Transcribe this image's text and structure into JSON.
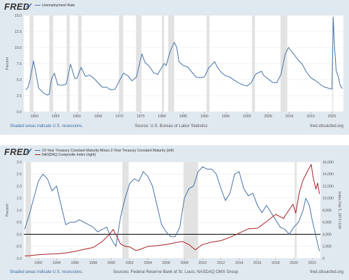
{
  "chart_data": [
    {
      "type": "line",
      "title": "",
      "series": [
        {
          "name": "Unemployment Rate",
          "color": "#4572a7",
          "points": [
            [
              1948,
              3.4
            ],
            [
              1948.5,
              3.8
            ],
            [
              1949,
              5.0
            ],
            [
              1949.8,
              7.9
            ],
            [
              1950.5,
              5.5
            ],
            [
              1951,
              3.7
            ],
            [
              1952,
              3.0
            ],
            [
              1953,
              2.6
            ],
            [
              1953.5,
              2.7
            ],
            [
              1954,
              5.0
            ],
            [
              1954.7,
              6.0
            ],
            [
              1955.5,
              4.2
            ],
            [
              1956.5,
              4.1
            ],
            [
              1957.5,
              4.3
            ],
            [
              1958.5,
              7.4
            ],
            [
              1959.5,
              5.2
            ],
            [
              1960,
              5.2
            ],
            [
              1961,
              6.9
            ],
            [
              1962,
              5.5
            ],
            [
              1963,
              5.7
            ],
            [
              1964,
              5.2
            ],
            [
              1965,
              4.5
            ],
            [
              1966,
              3.8
            ],
            [
              1967,
              3.8
            ],
            [
              1968,
              3.4
            ],
            [
              1969,
              3.5
            ],
            [
              1970,
              4.8
            ],
            [
              1971,
              6.0
            ],
            [
              1972,
              5.6
            ],
            [
              1973,
              4.8
            ],
            [
              1974,
              5.4
            ],
            [
              1975.3,
              9.0
            ],
            [
              1976,
              7.7
            ],
            [
              1977,
              7.1
            ],
            [
              1978,
              6.1
            ],
            [
              1979,
              5.8
            ],
            [
              1980.5,
              7.5
            ],
            [
              1981,
              7.2
            ],
            [
              1982,
              9.5
            ],
            [
              1982.9,
              10.8
            ],
            [
              1983.5,
              10.0
            ],
            [
              1984,
              7.8
            ],
            [
              1985,
              7.2
            ],
            [
              1986,
              7.0
            ],
            [
              1987,
              6.2
            ],
            [
              1988,
              5.4
            ],
            [
              1989,
              5.3
            ],
            [
              1990,
              5.4
            ],
            [
              1991,
              6.8
            ],
            [
              1992.4,
              7.8
            ],
            [
              1993,
              7.0
            ],
            [
              1994,
              6.1
            ],
            [
              1995,
              5.6
            ],
            [
              1996,
              5.4
            ],
            [
              1997,
              4.9
            ],
            [
              1998,
              4.5
            ],
            [
              1999,
              4.2
            ],
            [
              2000,
              4.0
            ],
            [
              2001,
              4.5
            ],
            [
              2002,
              5.8
            ],
            [
              2003.4,
              6.3
            ],
            [
              2004,
              5.6
            ],
            [
              2005,
              5.1
            ],
            [
              2006,
              4.6
            ],
            [
              2007,
              4.5
            ],
            [
              2008,
              5.8
            ],
            [
              2009,
              9.0
            ],
            [
              2009.8,
              10.0
            ],
            [
              2010.5,
              9.4
            ],
            [
              2011,
              9.0
            ],
            [
              2012,
              8.1
            ],
            [
              2013,
              7.4
            ],
            [
              2014,
              6.2
            ],
            [
              2015,
              5.3
            ],
            [
              2016,
              4.9
            ],
            [
              2017,
              4.4
            ],
            [
              2018,
              3.9
            ],
            [
              2019,
              3.7
            ],
            [
              2020,
              3.5
            ],
            [
              2020.3,
              14.7
            ],
            [
              2020.6,
              10.2
            ],
            [
              2021,
              6.4
            ],
            [
              2021.5,
              5.4
            ],
            [
              2022,
              4.0
            ],
            [
              2022.5,
              3.6
            ]
          ]
        }
      ],
      "xlim": [
        1947.5,
        2022.7
      ],
      "ylim": [
        0,
        15
      ],
      "ylabel": "Percent",
      "xticks": [
        "1950",
        "1955",
        "1960",
        "1965",
        "1970",
        "1975",
        "1980",
        "1985",
        "1990",
        "1995",
        "2000",
        "2005",
        "2010",
        "2015",
        "2020"
      ],
      "xtick_values": [
        1950,
        1955,
        1960,
        1965,
        1970,
        1975,
        1980,
        1985,
        1990,
        1995,
        2000,
        2005,
        2010,
        2015,
        2020
      ],
      "yticks": [
        "0.0",
        "2.5",
        "5.0",
        "7.5",
        "10.0",
        "12.5",
        "15.0"
      ],
      "ytick_values": [
        0,
        2.5,
        5,
        7.5,
        10,
        12.5,
        15
      ],
      "recessions": [
        [
          1948.9,
          1949.8
        ],
        [
          1953.5,
          1954.4
        ],
        [
          1957.6,
          1958.3
        ],
        [
          1960.3,
          1961.1
        ],
        [
          1969.9,
          1970.9
        ],
        [
          1973.9,
          1975.2
        ],
        [
          1980.0,
          1980.5
        ],
        [
          1981.5,
          1982.9
        ],
        [
          1990.5,
          1991.2
        ],
        [
          2001.2,
          2001.9
        ],
        [
          2007.9,
          2009.5
        ],
        [
          2020.1,
          2020.3
        ]
      ],
      "grid": true,
      "legend": "top-left"
    },
    {
      "type": "line",
      "title": "",
      "series": [
        {
          "name": "10-Year Treasury Constant Maturity Minus 2-Year Treasury Constant Maturity (left)",
          "color": "#4572a7",
          "axis": "left",
          "points": [
            [
              1990.5,
              0.2
            ],
            [
              1991,
              0.8
            ],
            [
              1991.5,
              1.5
            ],
            [
              1992,
              2.2
            ],
            [
              1992.5,
              2.5
            ],
            [
              1993,
              2.3
            ],
            [
              1993.5,
              1.8
            ],
            [
              1994,
              2.0
            ],
            [
              1994.5,
              1.2
            ],
            [
              1995,
              0.4
            ],
            [
              1995.5,
              0.5
            ],
            [
              1996,
              0.5
            ],
            [
              1996.5,
              0.6
            ],
            [
              1997,
              0.5
            ],
            [
              1997.5,
              0.4
            ],
            [
              1998,
              0.3
            ],
            [
              1998.5,
              0.1
            ],
            [
              1999,
              0.2
            ],
            [
              1999.5,
              0.3
            ],
            [
              2000,
              -0.2
            ],
            [
              2000.5,
              -0.5
            ],
            [
              2001,
              0.7
            ],
            [
              2001.5,
              1.5
            ],
            [
              2002,
              2.1
            ],
            [
              2002.5,
              2.3
            ],
            [
              2003,
              2.2
            ],
            [
              2003.5,
              2.6
            ],
            [
              2004,
              2.4
            ],
            [
              2004.5,
              2.0
            ],
            [
              2005,
              1.2
            ],
            [
              2005.5,
              0.4
            ],
            [
              2006,
              0.1
            ],
            [
              2006.5,
              -0.1
            ],
            [
              2007,
              -0.1
            ],
            [
              2007.5,
              0.3
            ],
            [
              2008,
              1.5
            ],
            [
              2008.5,
              1.9
            ],
            [
              2009,
              2.0
            ],
            [
              2009.5,
              2.6
            ],
            [
              2010,
              2.8
            ],
            [
              2010.5,
              2.7
            ],
            [
              2011,
              2.7
            ],
            [
              2011.5,
              2.5
            ],
            [
              2012,
              1.9
            ],
            [
              2012.5,
              1.4
            ],
            [
              2013,
              1.7
            ],
            [
              2013.5,
              2.5
            ],
            [
              2014,
              2.6
            ],
            [
              2014.5,
              1.9
            ],
            [
              2015,
              1.6
            ],
            [
              2015.5,
              1.7
            ],
            [
              2016,
              1.2
            ],
            [
              2016.5,
              0.9
            ],
            [
              2017,
              1.2
            ],
            [
              2017.5,
              0.9
            ],
            [
              2018,
              0.6
            ],
            [
              2018.5,
              0.3
            ],
            [
              2019,
              0.2
            ],
            [
              2019.5,
              0.0
            ],
            [
              2020,
              0.3
            ],
            [
              2020.5,
              0.5
            ],
            [
              2021,
              1.0
            ],
            [
              2021.3,
              1.5
            ],
            [
              2021.7,
              1.2
            ],
            [
              2022,
              0.6
            ],
            [
              2022.3,
              0.1
            ],
            [
              2022.6,
              -0.4
            ],
            [
              2022.8,
              -0.7
            ]
          ]
        },
        {
          "name": "NASDAQ Composite Index (right)",
          "color": "#aa1d24",
          "axis": "right",
          "points": [
            [
              1990.5,
              400
            ],
            [
              1991,
              430
            ],
            [
              1992,
              600
            ],
            [
              1993,
              700
            ],
            [
              1994,
              750
            ],
            [
              1995,
              900
            ],
            [
              1996,
              1150
            ],
            [
              1997,
              1500
            ],
            [
              1998,
              1800
            ],
            [
              1999,
              2800
            ],
            [
              1999.8,
              4000
            ],
            [
              2000.2,
              4800
            ],
            [
              2000.6,
              3600
            ],
            [
              2001,
              2400
            ],
            [
              2001.5,
              2000
            ],
            [
              2002,
              1900
            ],
            [
              2002.7,
              1300
            ],
            [
              2003,
              1400
            ],
            [
              2004,
              2000
            ],
            [
              2005,
              2100
            ],
            [
              2006,
              2300
            ],
            [
              2007,
              2600
            ],
            [
              2007.8,
              2800
            ],
            [
              2008.5,
              2300
            ],
            [
              2009.2,
              1400
            ],
            [
              2009.8,
              2100
            ],
            [
              2010,
              2300
            ],
            [
              2011,
              2700
            ],
            [
              2012,
              2950
            ],
            [
              2013,
              3500
            ],
            [
              2014,
              4200
            ],
            [
              2015,
              4900
            ],
            [
              2016,
              5000
            ],
            [
              2017,
              6100
            ],
            [
              2018,
              7300
            ],
            [
              2018.9,
              6600
            ],
            [
              2019,
              7000
            ],
            [
              2019.9,
              9000
            ],
            [
              2020.2,
              7500
            ],
            [
              2020.6,
              11000
            ],
            [
              2021,
              13000
            ],
            [
              2021.5,
              14500
            ],
            [
              2021.9,
              15600
            ],
            [
              2022.1,
              13500
            ],
            [
              2022.4,
              11500
            ],
            [
              2022.6,
              12500
            ],
            [
              2022.8,
              10700
            ]
          ]
        }
      ],
      "xlim": [
        1990.4,
        2022.9
      ],
      "ylim": [
        -1.0,
        3.0
      ],
      "y2lim": [
        0,
        16000
      ],
      "ylabel": "Percent",
      "y2label": "Index Feb 5, 1971=100",
      "xticks": [
        "1992",
        "1994",
        "1996",
        "1998",
        "2000",
        "2002",
        "2004",
        "2006",
        "2008",
        "2010",
        "2012",
        "2014",
        "2016",
        "2018",
        "2020",
        "2022"
      ],
      "xtick_values": [
        1992,
        1994,
        1996,
        1998,
        2000,
        2002,
        2004,
        2006,
        2008,
        2010,
        2012,
        2014,
        2016,
        2018,
        2020,
        2022
      ],
      "yticks": [
        "-1.0",
        "-0.5",
        "0.0",
        "0.5",
        "1.0",
        "1.5",
        "2.0",
        "2.5",
        "3.0"
      ],
      "ytick_values": [
        -1.0,
        -0.5,
        0,
        0.5,
        1.0,
        1.5,
        2.0,
        2.5,
        3.0
      ],
      "y2ticks": [
        "0",
        "2,000",
        "4,000",
        "6,000",
        "8,000",
        "10,000",
        "12,000",
        "14,000",
        "16,000"
      ],
      "y2tick_values": [
        0,
        2000,
        4000,
        6000,
        8000,
        10000,
        12000,
        14000,
        16000
      ],
      "recessions": [
        [
          1990.6,
          1991.2
        ],
        [
          2001.2,
          2001.9
        ],
        [
          2007.9,
          2009.5
        ],
        [
          2020.1,
          2020.3
        ]
      ],
      "zero_line": 0,
      "grid": true,
      "legend": "top-left"
    }
  ],
  "panels": [
    {
      "logo": "FRED",
      "legend": [
        "Unemployment Rate"
      ],
      "recession_note": "Shaded areas indicate U.S. recessions.",
      "source": "Source: U.S. Bureau of Labor Statistics",
      "site": "fred.stlouisfed.org"
    },
    {
      "logo": "FRED",
      "legend": [
        "10-Year Treasury Constant Maturity Minus 2-Year Treasury Constant Maturity (left)",
        "NASDAQ Composite Index (right)"
      ],
      "recession_note": "Shaded areas indicate U.S. recessions.",
      "source": "Sources: Federal Reserve Bank of St. Louis; NASDAQ OMX Group",
      "site": "fred.stlouisfed.org"
    }
  ],
  "colors": {
    "background": "#e1e9f0",
    "plot_bg": "#ffffff",
    "recession": "#e2e2e2",
    "accent_link": "#3a6ea5"
  }
}
